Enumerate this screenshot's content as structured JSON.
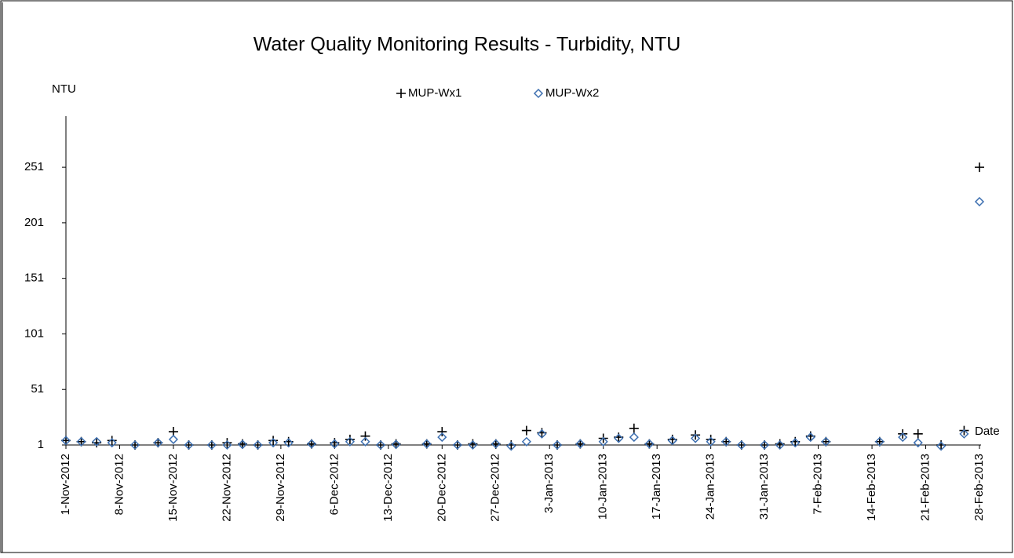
{
  "chart_data": {
    "type": "scatter",
    "title": "Water Quality Monitoring Results - Turbidity, NTU",
    "y_label": "NTU",
    "x_label": "Date",
    "x": [
      "2012-11-01",
      "2012-11-03",
      "2012-11-05",
      "2012-11-07",
      "2012-11-10",
      "2012-11-13",
      "2012-11-15",
      "2012-11-17",
      "2012-11-20",
      "2012-11-22",
      "2012-11-24",
      "2012-11-26",
      "2012-11-28",
      "2012-11-30",
      "2012-12-03",
      "2012-12-06",
      "2012-12-08",
      "2012-12-10",
      "2012-12-12",
      "2012-12-14",
      "2012-12-18",
      "2012-12-20",
      "2012-12-22",
      "2012-12-24",
      "2012-12-27",
      "2012-12-29",
      "2012-12-31",
      "2013-01-02",
      "2013-01-04",
      "2013-01-07",
      "2013-01-10",
      "2013-01-12",
      "2013-01-14",
      "2013-01-16",
      "2013-01-19",
      "2013-01-22",
      "2013-01-24",
      "2013-01-26",
      "2013-01-28",
      "2013-01-31",
      "2013-02-02",
      "2013-02-04",
      "2013-02-06",
      "2013-02-08",
      "2013-02-15",
      "2013-02-18",
      "2013-02-20",
      "2013-02-23",
      "2013-02-26",
      "2013-02-28"
    ],
    "series": [
      {
        "name": "MUP-Wx1",
        "marker": "plus",
        "color": "#000000",
        "values": [
          5,
          4,
          3,
          5,
          1,
          3,
          13,
          1,
          1,
          3,
          2,
          1,
          5,
          4,
          2,
          3,
          6,
          9,
          1,
          2,
          2,
          13,
          1,
          2,
          2,
          1,
          14,
          12,
          1,
          2,
          7,
          8,
          16,
          2,
          6,
          10,
          6,
          4,
          1,
          1,
          2,
          4,
          9,
          4,
          4,
          11,
          11,
          1,
          14,
          251
        ]
      },
      {
        "name": "MUP-Wx2",
        "marker": "diamond",
        "color": "#3d6fb0",
        "values": [
          5,
          4,
          4,
          3,
          1,
          3,
          6,
          1,
          1,
          1,
          1.5,
          1,
          3,
          3,
          2,
          2,
          4,
          4,
          1,
          1.5,
          2,
          8,
          1,
          1,
          2,
          0,
          4,
          11,
          1,
          2,
          4,
          7,
          8,
          2,
          5,
          7,
          4,
          4,
          1,
          1,
          1,
          3,
          8,
          4,
          4,
          8,
          3,
          0,
          11,
          220
        ]
      }
    ],
    "ylim": [
      1,
      297
    ],
    "yticks": [
      1,
      51,
      101,
      151,
      201,
      251
    ],
    "xlim": [
      "2012-11-01",
      "2013-02-28"
    ],
    "xticks": [
      {
        "value": "2012-11-01",
        "label": "1-Nov-2012"
      },
      {
        "value": "2012-11-08",
        "label": "8-Nov-2012"
      },
      {
        "value": "2012-11-15",
        "label": "15-Nov-2012"
      },
      {
        "value": "2012-11-22",
        "label": "22-Nov-2012"
      },
      {
        "value": "2012-11-29",
        "label": "29-Nov-2012"
      },
      {
        "value": "2012-12-06",
        "label": "6-Dec-2012"
      },
      {
        "value": "2012-12-13",
        "label": "13-Dec-2012"
      },
      {
        "value": "2012-12-20",
        "label": "20-Dec-2012"
      },
      {
        "value": "2012-12-27",
        "label": "27-Dec-2012"
      },
      {
        "value": "2013-01-03",
        "label": "3-Jan-2013"
      },
      {
        "value": "2013-01-10",
        "label": "10-Jan-2013"
      },
      {
        "value": "2013-01-17",
        "label": "17-Jan-2013"
      },
      {
        "value": "2013-01-24",
        "label": "24-Jan-2013"
      },
      {
        "value": "2013-01-31",
        "label": "31-Jan-2013"
      },
      {
        "value": "2013-02-07",
        "label": "7-Feb-2013"
      },
      {
        "value": "2013-02-14",
        "label": "14-Feb-2013"
      },
      {
        "value": "2013-02-21",
        "label": "21-Feb-2013"
      },
      {
        "value": "2013-02-28",
        "label": "28-Feb-2013"
      }
    ],
    "grid": false
  }
}
